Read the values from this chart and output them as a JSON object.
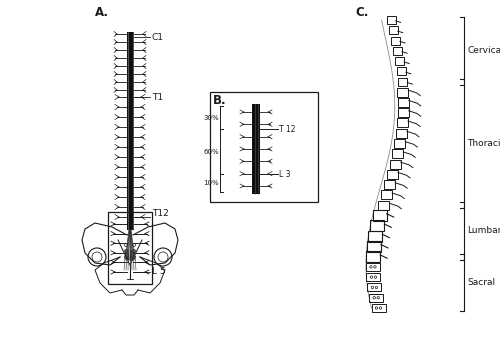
{
  "bg_color": "#ffffff",
  "label_A": "A.",
  "label_B": "B.",
  "label_C": "C.",
  "label_C1": "C1",
  "label_T1": "T1",
  "label_T12_A": "T12",
  "label_L5": "L 5",
  "label_T12_B": "T 12",
  "label_L3": "L 3",
  "label_30pct": "30%",
  "label_60pct": "60%",
  "label_10pct": "10%",
  "label_cervical": "Cervical",
  "label_thoracic": "Thoracic",
  "label_lumbar": "Lumbar",
  "label_sacral": "Sacral",
  "line_color": "#1a1a1a",
  "cord_color": "#111111",
  "font_size_labels": 6.5,
  "font_size_section": 7.5
}
